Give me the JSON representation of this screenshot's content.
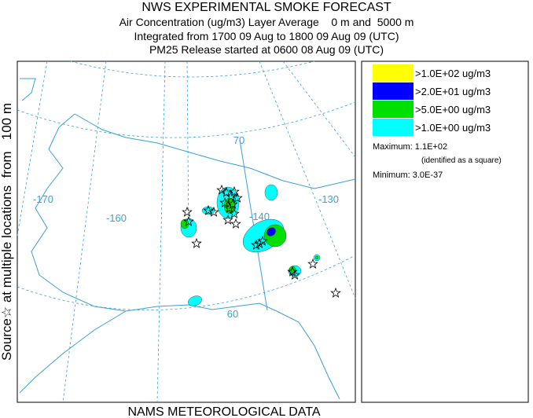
{
  "header": {
    "title": "NWS EXPERIMENTAL SMOKE FORECAST",
    "lines": [
      "Air Concentration (ug/m3) Layer Average    0 m and  5000 m",
      "Integrated from 1700 09 Aug to 1800 09 Aug 09 (UTC)",
      "PM25 Release started at 0600 08 Aug 09 (UTC)"
    ]
  },
  "side_label": "Source☆ at multiple locations  from   100 m",
  "footer": "NAMS METEOROLOGICAL DATA",
  "map": {
    "graticule_labels": [
      "-170",
      "-160",
      "-140",
      "-130",
      "70",
      "60"
    ]
  },
  "legend": {
    "items": [
      {
        "label": ">1.0E+02 ug/m3",
        "color": "#ffff00"
      },
      {
        "label": ">2.0E+01 ug/m3",
        "color": "#0000ff"
      },
      {
        "label": ">5.0E+00 ug/m3",
        "color": "#00e000"
      },
      {
        "label": ">1.0E+00 ug/m3",
        "color": "#00ffff"
      }
    ],
    "maximum": "Maximum: 1.1E+02",
    "max_note": "(identified as a square)",
    "minimum": "Minimum: 3.0E-37"
  }
}
